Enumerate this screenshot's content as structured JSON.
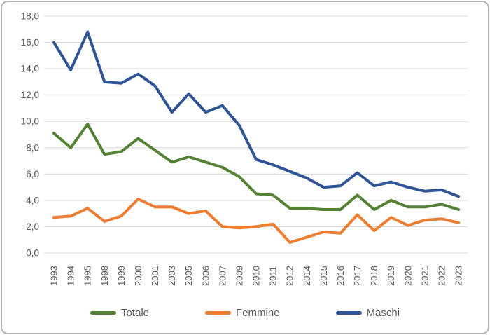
{
  "chart_data": {
    "type": "line",
    "title": "",
    "categories": [
      "1993",
      "1994",
      "1995",
      "1998",
      "1999",
      "2000",
      "2001",
      "2003",
      "2005",
      "2006",
      "2007",
      "2009",
      "2010",
      "2011",
      "2012",
      "2014",
      "2015",
      "2016",
      "2017",
      "2018",
      "2019",
      "2020",
      "2021",
      "2022",
      "2023"
    ],
    "series": [
      {
        "name": "Totale",
        "color": "#548235",
        "values": [
          9.1,
          8.0,
          9.8,
          7.5,
          7.7,
          8.7,
          7.8,
          6.9,
          7.3,
          6.9,
          6.5,
          5.8,
          4.5,
          4.4,
          3.4,
          3.4,
          3.3,
          3.3,
          4.4,
          3.3,
          4.0,
          3.5,
          3.5,
          3.7,
          3.3
        ]
      },
      {
        "name": "Femmine",
        "color": "#ED7D31",
        "values": [
          2.7,
          2.8,
          3.4,
          2.4,
          2.8,
          4.1,
          3.5,
          3.5,
          3.0,
          3.2,
          2.0,
          1.9,
          2.0,
          2.2,
          0.8,
          1.2,
          1.6,
          1.5,
          2.9,
          1.7,
          2.7,
          2.1,
          2.5,
          2.6,
          2.3
        ]
      },
      {
        "name": "Maschi",
        "color": "#2F5597",
        "values": [
          16.0,
          13.9,
          16.8,
          13.0,
          12.9,
          13.6,
          12.7,
          10.7,
          12.1,
          10.7,
          11.2,
          9.7,
          7.1,
          6.7,
          6.2,
          5.7,
          5.0,
          5.1,
          6.1,
          5.1,
          5.4,
          5.0,
          4.7,
          4.8,
          4.3
        ]
      }
    ],
    "xlabel": "",
    "ylabel": "",
    "ylim": [
      0,
      18
    ],
    "y_tick_step": 2,
    "y_tick_labels": [
      "0,0",
      "2,0",
      "4,0",
      "6,0",
      "8,0",
      "10,0",
      "12,0",
      "14,0",
      "16,0",
      "18,0"
    ],
    "grid": "horizontal",
    "legend_position": "bottom"
  },
  "colors": {
    "grid": "#D9D9D9",
    "axis_text": "#595959",
    "legend_text": "#595959",
    "border": "#B5B5B5",
    "background": "#FFFFFF"
  }
}
